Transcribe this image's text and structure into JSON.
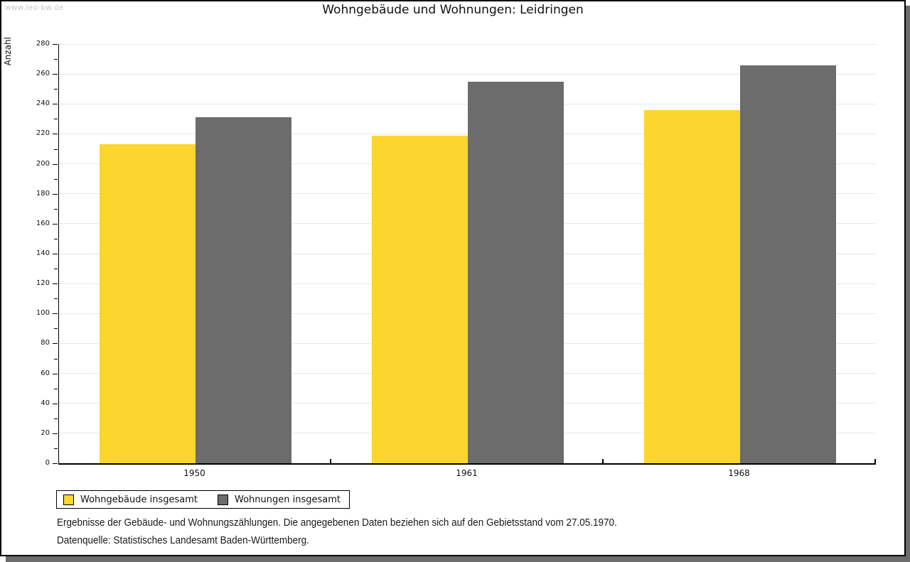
{
  "watermark": "www.leo-bw.de",
  "title": "Wohngebäude und Wohnungen: Leidringen",
  "chart_data": {
    "type": "bar",
    "categories": [
      "1950",
      "1961",
      "1968"
    ],
    "series": [
      {
        "name": "Wohngebäude insgesamt",
        "color": "#FCD52F",
        "values": [
          213,
          219,
          236
        ]
      },
      {
        "name": "Wohnungen insgesamt",
        "color": "#6C6C6C",
        "values": [
          231,
          255,
          266
        ]
      }
    ],
    "title": "Wohngebäude und Wohnungen: Leidringen",
    "xlabel": "",
    "ylabel": "Anzahl",
    "ylim": [
      0,
      280
    ],
    "ytick_major_step": 20,
    "ytick_minor_step": 10,
    "grid": true,
    "legend_position": "bottom-left"
  },
  "footer": {
    "line1": "Ergebnisse der Gebäude- und Wohnungszählungen. Die angegebenen Daten beziehen sich auf den Gebietsstand vom 27.05.1970.",
    "line2": "Datenquelle: Statistisches Landesamt Baden-Württemberg."
  },
  "colors": {
    "series1": "#FCD52F",
    "series2": "#6C6C6C",
    "gridline": "#E7E7E7",
    "axis": "#000000",
    "watermark": "#C9C9C9",
    "page_shadow": "#6C6C6C"
  }
}
